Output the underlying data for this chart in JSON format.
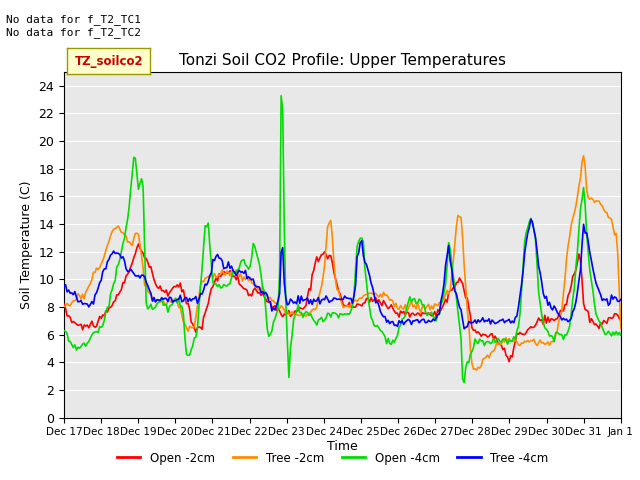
{
  "title": "Tonzi Soil CO2 Profile: Upper Temperatures",
  "xlabel": "Time",
  "ylabel": "Soil Temperature (C)",
  "ylim": [
    0,
    25
  ],
  "annotation_text": "No data for f_T2_TC1\nNo data for f_T2_TC2",
  "legend_label_text": "TZ_soilco2",
  "background_color": "#e8e8e8",
  "plot_bg": "#e8e8e8",
  "series_colors": {
    "open_2cm": "#ff0000",
    "tree_2cm": "#ff8c00",
    "open_4cm": "#00dd00",
    "tree_4cm": "#0000ff"
  },
  "series_labels": {
    "open_2cm": "Open -2cm",
    "tree_2cm": "Tree -2cm",
    "open_4cm": "Open -4cm",
    "tree_4cm": "Tree -4cm"
  },
  "n_points": 360,
  "x_start": 0,
  "x_end": 15,
  "x_tick_positions": [
    0,
    1,
    2,
    3,
    4,
    5,
    6,
    7,
    8,
    9,
    10,
    11,
    12,
    13,
    14,
    15
  ],
  "x_tick_labels": [
    "Dec 17",
    "Dec 18",
    "Dec 19",
    "Dec 20",
    "Dec 21",
    "Dec 22",
    "Dec 23",
    "Dec 24",
    "Dec 25",
    "Dec 26",
    "Dec 27",
    "Dec 28",
    "Dec 29",
    "Dec 30",
    "Dec 31",
    "Jan 1"
  ]
}
